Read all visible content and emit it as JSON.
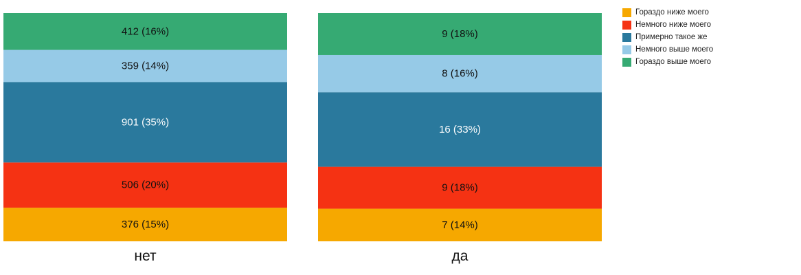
{
  "chart_data": {
    "type": "bar",
    "stacked": true,
    "normalized": true,
    "categories": [
      "нет",
      "да"
    ],
    "series": [
      {
        "name": "Гораздо ниже моего",
        "color": "#F6A800",
        "values": [
          376,
          7
        ],
        "labels": [
          "376 (15%)",
          "7 (14%)"
        ]
      },
      {
        "name": "Немного ниже моего",
        "color": "#F53213",
        "values": [
          506,
          9
        ],
        "labels": [
          "506 (20%)",
          "9 (18%)"
        ]
      },
      {
        "name": "Примерно такое же",
        "color": "#2A799D",
        "values": [
          901,
          16
        ],
        "labels": [
          "901 (35%)",
          "16 (33%)"
        ]
      },
      {
        "name": "Немного выше моего",
        "color": "#96CAE7",
        "values": [
          359,
          8
        ],
        "labels": [
          "359 (14%)",
          "8 (16%)"
        ]
      },
      {
        "name": "Гораздо выше моего",
        "color": "#36AA73",
        "values": [
          412,
          9
        ],
        "labels": [
          "412 (16%)",
          "9 (18%)"
        ]
      }
    ],
    "legend_position": "top-right",
    "grid": false,
    "label_colors": {
      "dark": "#111111",
      "light": "#ffffff"
    }
  }
}
